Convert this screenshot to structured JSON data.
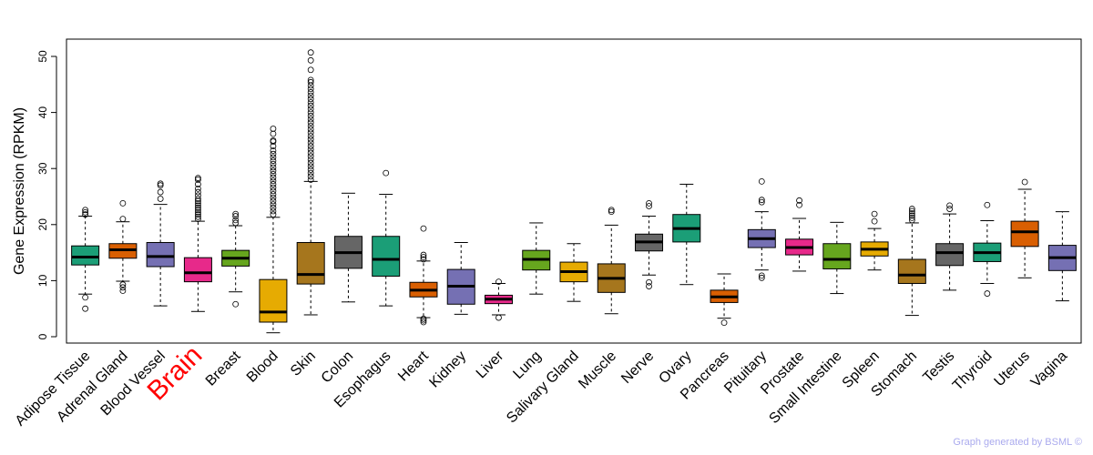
{
  "chart_data": {
    "type": "boxplot",
    "title": "",
    "ylabel": "Gene Expression (RPKM)",
    "xlabel": "",
    "ylim": [
      0,
      52
    ],
    "yticks": [
      0,
      10,
      20,
      30,
      40,
      50
    ],
    "highlight": "Brain",
    "highlight_color": "#ff0000",
    "categories": [
      "Adipose Tissue",
      "Adrenal Gland",
      "Blood Vessel",
      "Brain",
      "Breast",
      "Blood",
      "Skin",
      "Colon",
      "Esophagus",
      "Heart",
      "Kidney",
      "Liver",
      "Lung",
      "Salivary Gland",
      "Muscle",
      "Nerve",
      "Ovary",
      "Pancreas",
      "Pituitary",
      "Prostate",
      "Small Intestine",
      "Spleen",
      "Stomach",
      "Testis",
      "Thyroid",
      "Uterus",
      "Vagina"
    ],
    "colors": [
      "#1b9e77",
      "#d95f02",
      "#7570b3",
      "#e7298a",
      "#66a61e",
      "#e6ab02",
      "#a6761d",
      "#666666",
      "#1b9e77",
      "#d95f02",
      "#7570b3",
      "#e7298a",
      "#66a61e",
      "#e6ab02",
      "#a6761d",
      "#666666",
      "#1b9e77",
      "#d95f02",
      "#7570b3",
      "#e7298a",
      "#66a61e",
      "#e6ab02",
      "#a6761d",
      "#666666",
      "#1b9e77",
      "#d95f02",
      "#7570b3"
    ],
    "boxes": [
      {
        "q1": 12.8,
        "median": 14.2,
        "q3": 16.2,
        "whisker_low": 7.6,
        "whisker_high": 21.5,
        "outliers": [
          5.0,
          7.0,
          21.8,
          22.2,
          22.6
        ]
      },
      {
        "q1": 14.0,
        "median": 15.5,
        "q3": 16.6,
        "whisker_low": 9.9,
        "whisker_high": 20.5,
        "outliers": [
          8.2,
          8.8,
          9.3,
          21.0,
          23.8
        ]
      },
      {
        "q1": 12.5,
        "median": 14.3,
        "q3": 16.8,
        "whisker_low": 5.5,
        "whisker_high": 23.6,
        "outliers": [
          24.6,
          25.8,
          27.0,
          27.3
        ]
      },
      {
        "q1": 9.8,
        "median": 11.4,
        "q3": 14.1,
        "whisker_low": 4.5,
        "whisker_high": 20.6,
        "outliers": [
          21.0,
          21.4,
          21.8,
          22.2,
          22.6,
          23.0,
          23.4,
          23.8,
          24.2,
          24.6,
          25.2,
          25.8,
          26.4,
          27.2,
          28.0,
          28.3
        ]
      },
      {
        "q1": 12.6,
        "median": 14.0,
        "q3": 15.4,
        "whisker_low": 8.0,
        "whisker_high": 19.8,
        "outliers": [
          5.8,
          20.3,
          20.8,
          21.5,
          21.9
        ]
      },
      {
        "q1": 2.6,
        "median": 4.4,
        "q3": 10.2,
        "whisker_low": 0.7,
        "whisker_high": 21.3,
        "outliers": [
          21.8,
          22.4,
          23.0,
          23.6,
          24.2,
          24.8,
          25.4,
          26.0,
          26.6,
          27.2,
          27.8,
          28.4,
          29.0,
          29.6,
          30.2,
          30.8,
          31.4,
          32.0,
          32.6,
          33.2,
          34.0,
          34.8,
          35.0,
          36.2,
          37.1
        ]
      },
      {
        "q1": 9.4,
        "median": 11.1,
        "q3": 16.8,
        "whisker_low": 3.9,
        "whisker_high": 27.7,
        "outliers": [
          28.0,
          28.6,
          29.2,
          29.8,
          30.4,
          31.0,
          31.6,
          32.2,
          32.8,
          33.4,
          34.0,
          34.6,
          35.2,
          35.8,
          36.4,
          37.0,
          37.6,
          38.2,
          38.8,
          39.4,
          40.0,
          40.6,
          41.2,
          41.8,
          42.4,
          43.0,
          43.6,
          44.2,
          44.8,
          45.4,
          45.8,
          47.6,
          49.3,
          50.7
        ]
      },
      {
        "q1": 12.2,
        "median": 15.0,
        "q3": 17.9,
        "whisker_low": 6.2,
        "whisker_high": 25.6,
        "outliers": []
      },
      {
        "q1": 10.8,
        "median": 13.8,
        "q3": 17.9,
        "whisker_low": 5.5,
        "whisker_high": 25.4,
        "outliers": [
          29.2
        ]
      },
      {
        "q1": 7.1,
        "median": 8.3,
        "q3": 9.7,
        "whisker_low": 3.4,
        "whisker_high": 13.5,
        "outliers": [
          2.6,
          2.9,
          3.2,
          13.8,
          14.2,
          14.6,
          19.3
        ]
      },
      {
        "q1": 5.8,
        "median": 9.0,
        "q3": 12.0,
        "whisker_low": 4.0,
        "whisker_high": 16.8,
        "outliers": []
      },
      {
        "q1": 5.9,
        "median": 6.7,
        "q3": 7.4,
        "whisker_low": 3.9,
        "whisker_high": 9.5,
        "outliers": [
          3.4,
          9.8
        ]
      },
      {
        "q1": 11.9,
        "median": 13.8,
        "q3": 15.4,
        "whisker_low": 7.6,
        "whisker_high": 20.3,
        "outliers": []
      },
      {
        "q1": 9.8,
        "median": 11.6,
        "q3": 13.3,
        "whisker_low": 6.3,
        "whisker_high": 16.6,
        "outliers": []
      },
      {
        "q1": 7.9,
        "median": 10.4,
        "q3": 13.0,
        "whisker_low": 4.1,
        "whisker_high": 19.9,
        "outliers": [
          22.3,
          22.6
        ]
      },
      {
        "q1": 15.3,
        "median": 16.9,
        "q3": 18.3,
        "whisker_low": 11.0,
        "whisker_high": 21.5,
        "outliers": [
          9.0,
          9.7,
          23.3,
          23.8
        ]
      },
      {
        "q1": 16.9,
        "median": 19.3,
        "q3": 21.8,
        "whisker_low": 9.3,
        "whisker_high": 27.2,
        "outliers": []
      },
      {
        "q1": 6.1,
        "median": 7.1,
        "q3": 8.3,
        "whisker_low": 3.3,
        "whisker_high": 11.2,
        "outliers": [
          2.5
        ]
      },
      {
        "q1": 15.9,
        "median": 17.5,
        "q3": 19.1,
        "whisker_low": 11.9,
        "whisker_high": 22.3,
        "outliers": [
          10.5,
          10.9,
          24.0,
          24.4,
          27.7
        ]
      },
      {
        "q1": 14.6,
        "median": 15.9,
        "q3": 17.4,
        "whisker_low": 11.7,
        "whisker_high": 21.1,
        "outliers": [
          23.5,
          24.3
        ]
      },
      {
        "q1": 12.1,
        "median": 13.8,
        "q3": 16.6,
        "whisker_low": 7.7,
        "whisker_high": 20.4,
        "outliers": []
      },
      {
        "q1": 14.4,
        "median": 15.6,
        "q3": 16.9,
        "whisker_low": 11.9,
        "whisker_high": 19.3,
        "outliers": [
          20.6,
          21.9
        ]
      },
      {
        "q1": 9.5,
        "median": 11.0,
        "q3": 13.8,
        "whisker_low": 3.8,
        "whisker_high": 20.3,
        "outliers": [
          20.8,
          21.2,
          21.6,
          22.0,
          22.4,
          22.8
        ]
      },
      {
        "q1": 12.7,
        "median": 15.0,
        "q3": 16.6,
        "whisker_low": 8.3,
        "whisker_high": 21.9,
        "outliers": [
          22.8,
          23.4
        ]
      },
      {
        "q1": 13.4,
        "median": 15.0,
        "q3": 16.7,
        "whisker_low": 9.5,
        "whisker_high": 20.7,
        "outliers": [
          7.7,
          23.5
        ]
      },
      {
        "q1": 16.1,
        "median": 18.7,
        "q3": 20.6,
        "whisker_low": 10.5,
        "whisker_high": 26.3,
        "outliers": [
          27.6
        ]
      },
      {
        "q1": 11.8,
        "median": 14.1,
        "q3": 16.3,
        "whisker_low": 6.4,
        "whisker_high": 22.3,
        "outliers": []
      }
    ]
  },
  "footer": {
    "credit": "Graph generated by BSML ©"
  }
}
